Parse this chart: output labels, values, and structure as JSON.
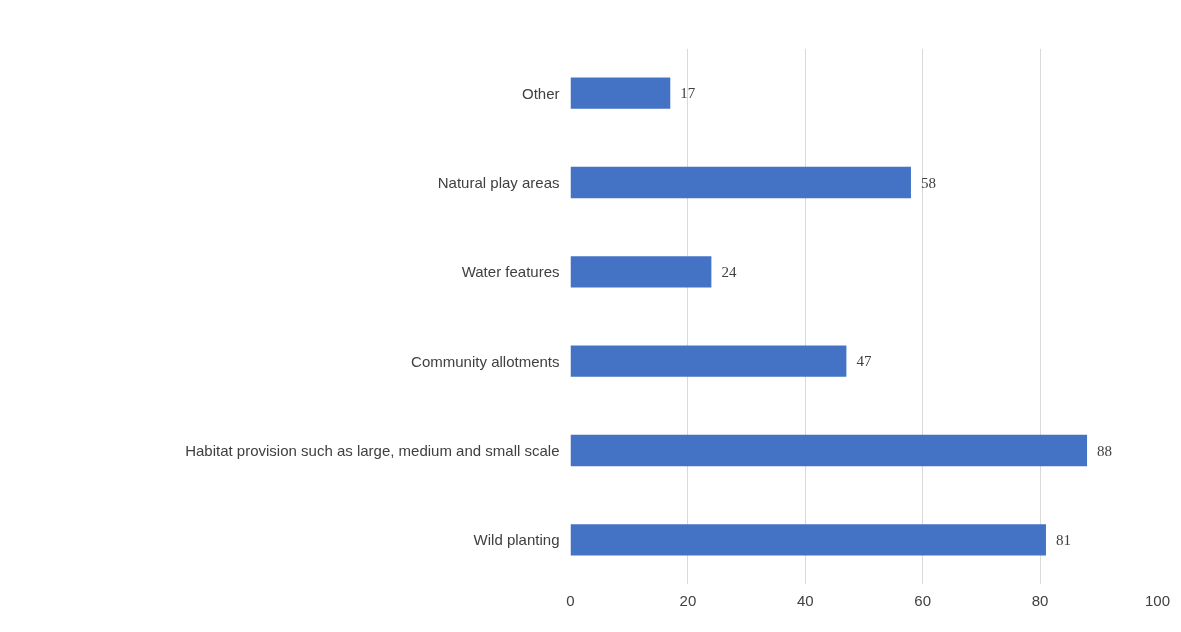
{
  "chart_data": {
    "type": "bar",
    "orientation": "horizontal",
    "categories": [
      "Other",
      "Natural play areas",
      "Water features",
      "Community allotments",
      "Habitat provision such as large, medium and small scale",
      "Wild planting"
    ],
    "values": [
      17,
      58,
      24,
      47,
      88,
      81
    ],
    "color": "#4472c4",
    "xlim": [
      0,
      100
    ],
    "xticks": [
      0,
      20,
      40,
      60,
      80,
      100
    ],
    "grid": "x",
    "data_labels": true
  }
}
